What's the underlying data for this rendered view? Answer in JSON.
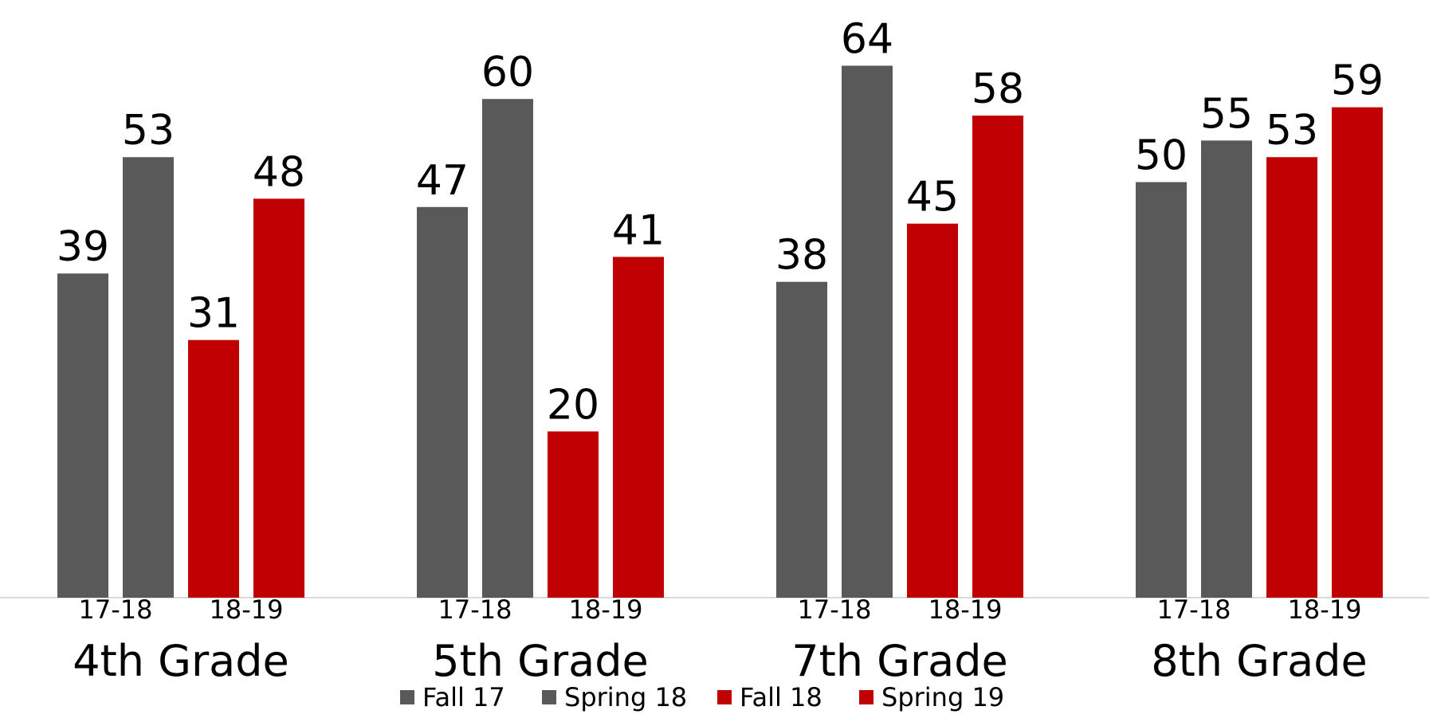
{
  "chart_data": {
    "type": "bar",
    "groups": [
      {
        "name": "4th Grade",
        "subgroups": [
          "17-18",
          "18-19"
        ],
        "values": [
          39,
          53,
          31,
          48
        ]
      },
      {
        "name": "5th Grade",
        "subgroups": [
          "17-18",
          "18-19"
        ],
        "values": [
          47,
          60,
          20,
          41
        ]
      },
      {
        "name": "7th Grade",
        "subgroups": [
          "17-18",
          "18-19"
        ],
        "values": [
          38,
          64,
          45,
          58
        ]
      },
      {
        "name": "8th Grade",
        "subgroups": [
          "17-18",
          "18-19"
        ],
        "values": [
          50,
          55,
          53,
          59
        ]
      }
    ],
    "series": [
      {
        "name": "Fall 17",
        "color": "#595959"
      },
      {
        "name": "Spring 18",
        "color": "#595959"
      },
      {
        "name": "Fall 18",
        "color": "#c00000"
      },
      {
        "name": "Spring 19",
        "color": "#c00000"
      }
    ],
    "ylim": [
      0,
      70
    ],
    "grid": false,
    "legend_position": "bottom",
    "data_labels": true
  }
}
